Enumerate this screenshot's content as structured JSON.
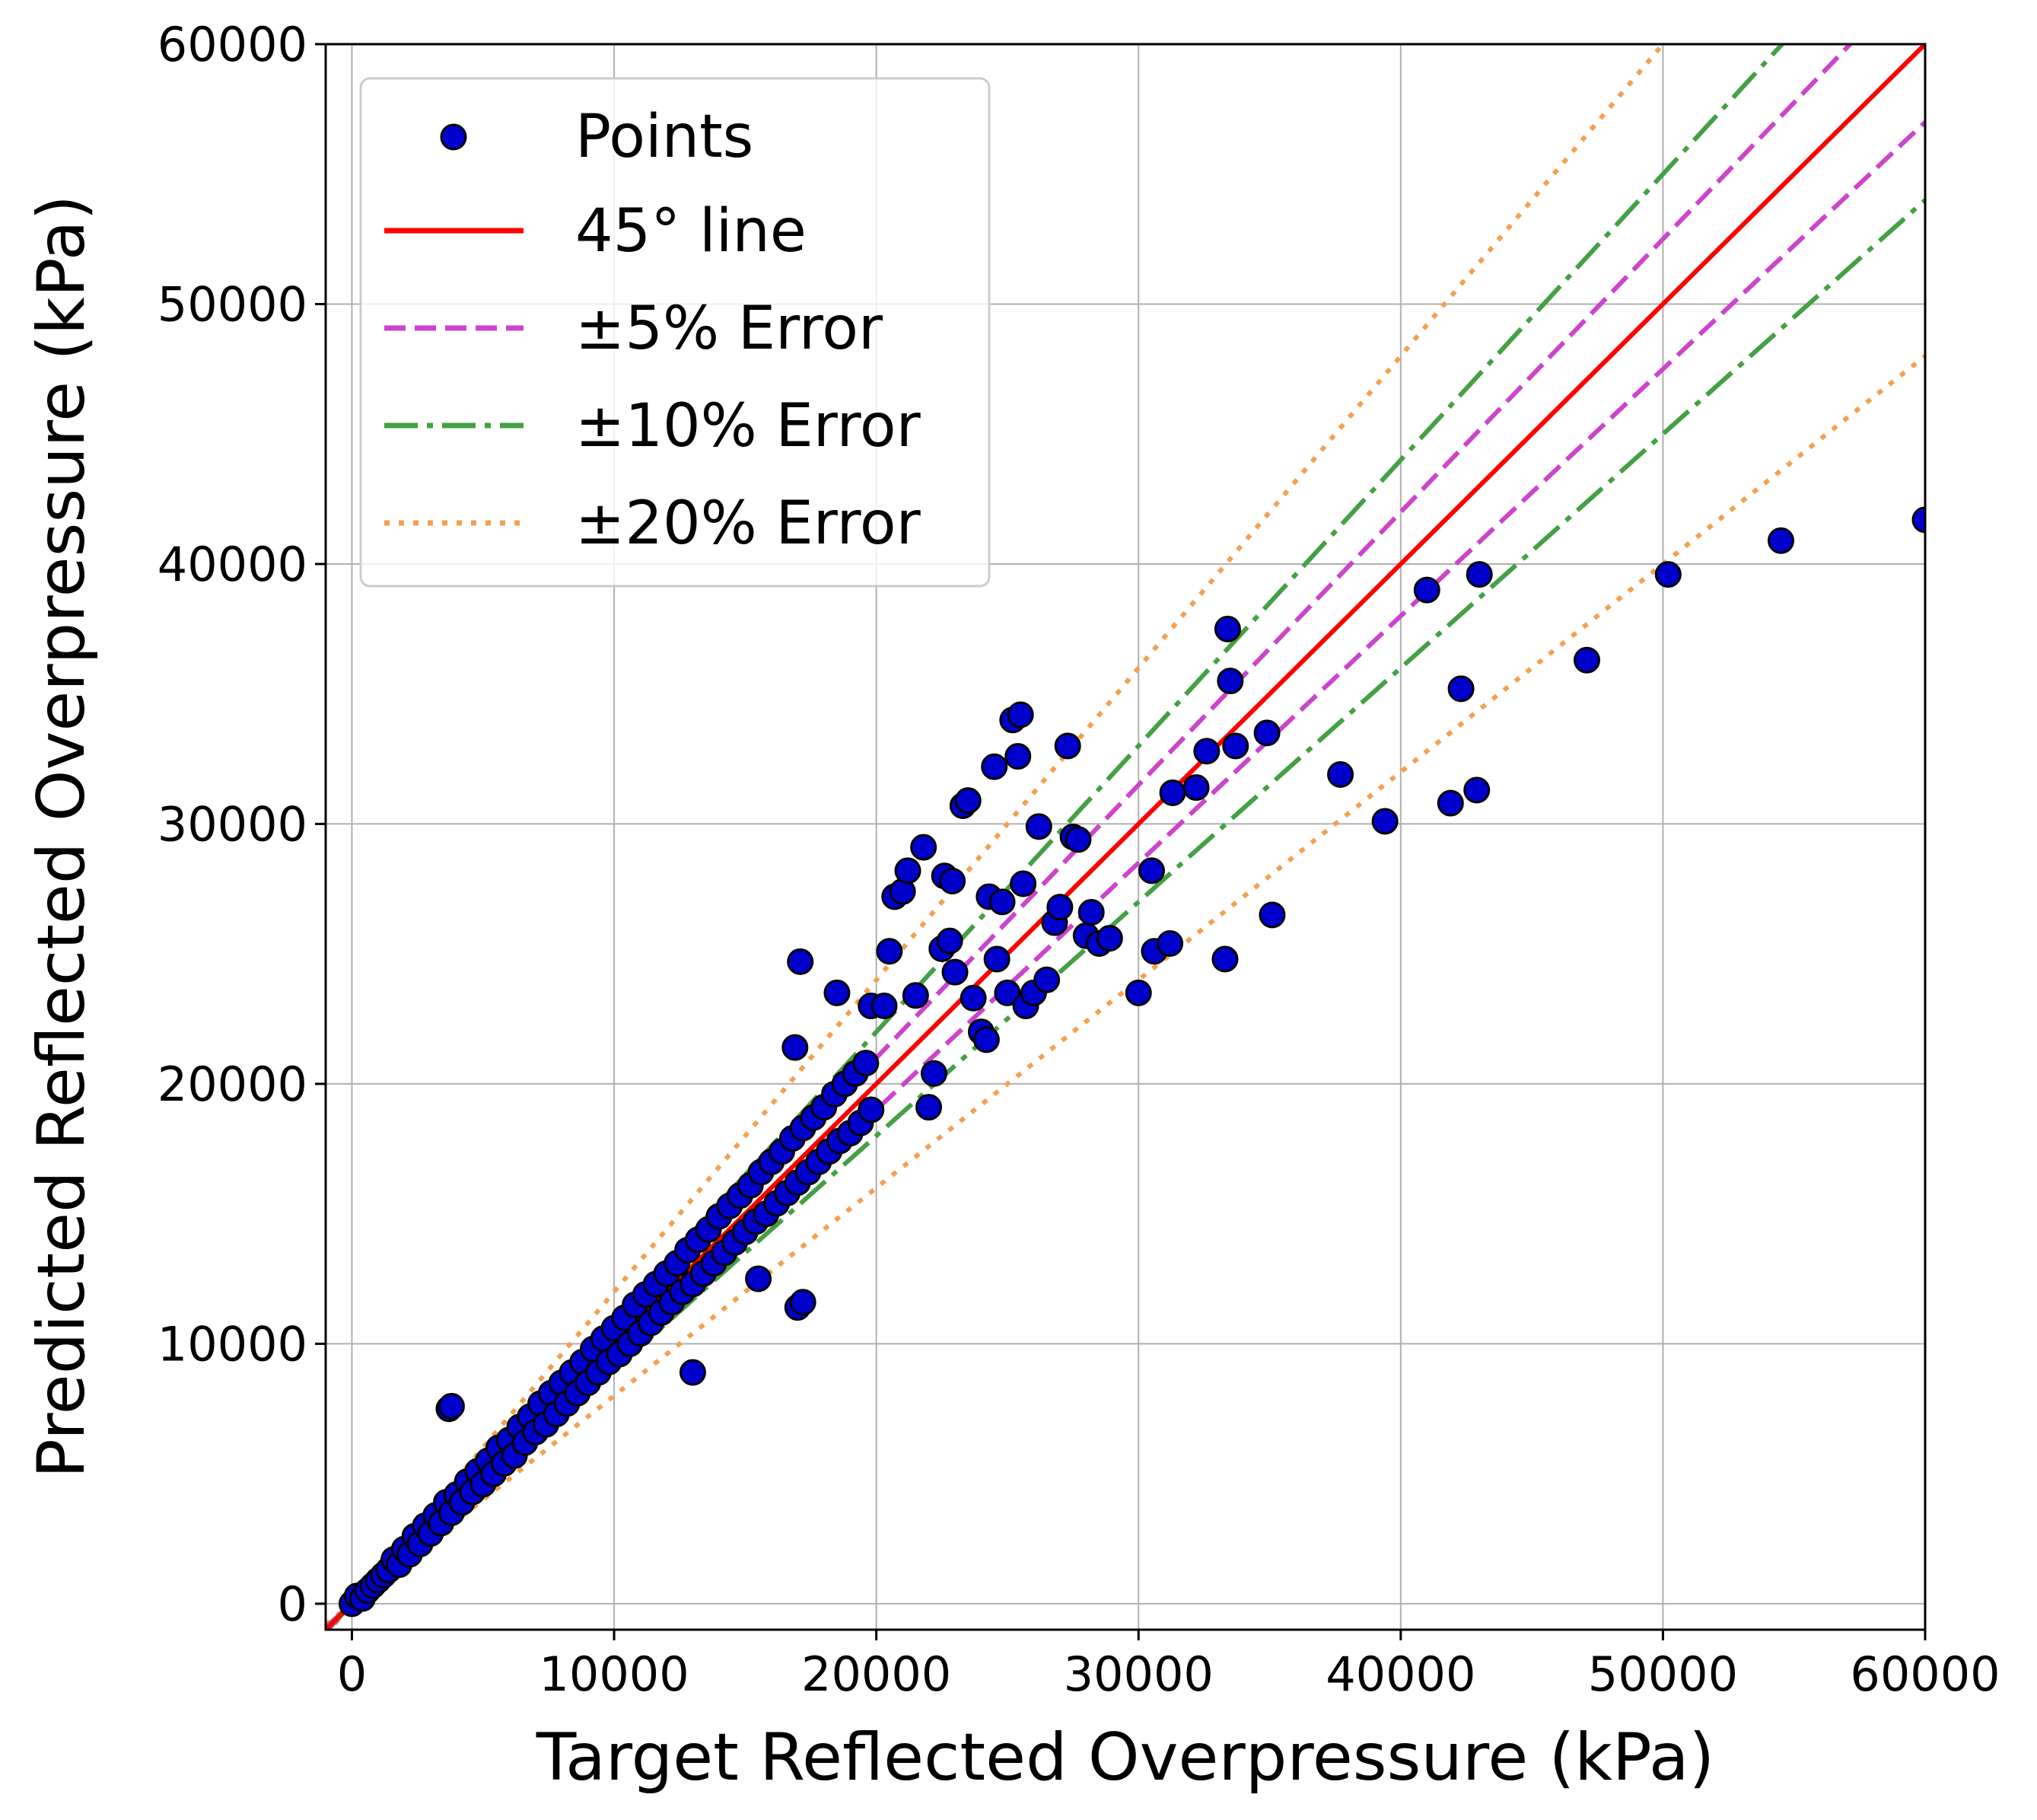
{
  "chart_data": {
    "type": "scatter",
    "title": "",
    "xlabel": "Target Reflected Overpressure (kPa)",
    "ylabel": "Predicted Reflected Overpressure (kPa)",
    "xlim": [
      -1000,
      60000
    ],
    "ylim": [
      -1000,
      60000
    ],
    "xticks": [
      "0",
      "10000",
      "20000",
      "30000",
      "40000",
      "50000",
      "60000"
    ],
    "yticks": [
      "0",
      "10000",
      "20000",
      "30000",
      "40000",
      "50000",
      "60000"
    ],
    "grid": true,
    "legend_position": "top-left",
    "legend": {
      "points": "Points",
      "line45": "45° line",
      "err5": "±5% Error",
      "err10": "±10% Error",
      "err20": "±20% Error"
    },
    "colors": {
      "points_fill": "#0000cc",
      "points_edge": "#000000",
      "line45": "#ff0000",
      "err5": "#cc44cc",
      "err10": "#44a044",
      "err20": "#f5a050",
      "grid": "#b0b0b0"
    },
    "reference_lines": [
      {
        "name": "45° line",
        "slopes": [
          1.0
        ]
      },
      {
        "name": "±5% Error",
        "slopes": [
          1.05,
          0.95
        ]
      },
      {
        "name": "±10% Error",
        "slopes": [
          1.1,
          0.9
        ]
      },
      {
        "name": "±20% Error",
        "slopes": [
          1.2,
          0.8
        ]
      }
    ],
    "series": [
      {
        "name": "Points",
        "points": [
          [
            0,
            0
          ],
          [
            200,
            300
          ],
          [
            400,
            200
          ],
          [
            600,
            500
          ],
          [
            800,
            700
          ],
          [
            1000,
            900
          ],
          [
            1200,
            1100
          ],
          [
            1400,
            1300
          ],
          [
            1600,
            1700
          ],
          [
            1800,
            1500
          ],
          [
            2000,
            2100
          ],
          [
            2200,
            1900
          ],
          [
            2400,
            2600
          ],
          [
            2600,
            2300
          ],
          [
            2800,
            3000
          ],
          [
            3000,
            2700
          ],
          [
            3200,
            3400
          ],
          [
            3400,
            3100
          ],
          [
            3600,
            3900
          ],
          [
            3800,
            3500
          ],
          [
            4000,
            4200
          ],
          [
            4200,
            3900
          ],
          [
            4400,
            4700
          ],
          [
            4600,
            4300
          ],
          [
            4800,
            5100
          ],
          [
            5000,
            4600
          ],
          [
            5200,
            5500
          ],
          [
            5400,
            5000
          ],
          [
            5600,
            6000
          ],
          [
            5800,
            5400
          ],
          [
            6000,
            6300
          ],
          [
            6200,
            5700
          ],
          [
            6400,
            6800
          ],
          [
            6600,
            6200
          ],
          [
            6800,
            7200
          ],
          [
            7000,
            6600
          ],
          [
            7200,
            7700
          ],
          [
            7400,
            6900
          ],
          [
            7600,
            8100
          ],
          [
            7800,
            7300
          ],
          [
            8000,
            8500
          ],
          [
            8200,
            7700
          ],
          [
            8400,
            8900
          ],
          [
            8600,
            8100
          ],
          [
            8800,
            9300
          ],
          [
            9000,
            8500
          ],
          [
            9200,
            9800
          ],
          [
            9400,
            8900
          ],
          [
            9600,
            10200
          ],
          [
            9800,
            9300
          ],
          [
            10000,
            10600
          ],
          [
            10200,
            9600
          ],
          [
            10400,
            11000
          ],
          [
            10600,
            10000
          ],
          [
            10800,
            11500
          ],
          [
            11000,
            10400
          ],
          [
            11200,
            11900
          ],
          [
            11400,
            10800
          ],
          [
            11600,
            12300
          ],
          [
            11800,
            11200
          ],
          [
            12000,
            12700
          ],
          [
            12200,
            11600
          ],
          [
            12400,
            13100
          ],
          [
            12600,
            12000
          ],
          [
            12800,
            13600
          ],
          [
            13000,
            12300
          ],
          [
            13200,
            14000
          ],
          [
            13400,
            12700
          ],
          [
            13600,
            14400
          ],
          [
            13800,
            13100
          ],
          [
            14000,
            14900
          ],
          [
            14200,
            13500
          ],
          [
            14400,
            15300
          ],
          [
            14600,
            13900
          ],
          [
            14800,
            15700
          ],
          [
            15000,
            14300
          ],
          [
            15200,
            16100
          ],
          [
            15400,
            14700
          ],
          [
            15600,
            16600
          ],
          [
            15800,
            15000
          ],
          [
            16000,
            17000
          ],
          [
            16200,
            15400
          ],
          [
            16400,
            17400
          ],
          [
            16600,
            15800
          ],
          [
            16800,
            17900
          ],
          [
            17000,
            16200
          ],
          [
            17200,
            18300
          ],
          [
            17400,
            16600
          ],
          [
            17600,
            18700
          ],
          [
            17800,
            17000
          ],
          [
            18000,
            19100
          ],
          [
            18200,
            17400
          ],
          [
            18400,
            19600
          ],
          [
            18600,
            17800
          ],
          [
            18800,
            20000
          ],
          [
            19000,
            18100
          ],
          [
            19200,
            20400
          ],
          [
            19400,
            18500
          ],
          [
            19600,
            20800
          ],
          [
            19800,
            19000
          ],
          [
            3700,
            7500
          ],
          [
            3800,
            7600
          ],
          [
            13000,
            8900
          ],
          [
            15500,
            12500
          ],
          [
            17000,
            11400
          ],
          [
            17200,
            11600
          ],
          [
            16900,
            21400
          ],
          [
            17100,
            24700
          ],
          [
            18500,
            23500
          ],
          [
            19800,
            23000
          ],
          [
            20300,
            23000
          ],
          [
            20500,
            25100
          ],
          [
            20700,
            27200
          ],
          [
            21000,
            27400
          ],
          [
            21200,
            28200
          ],
          [
            21500,
            23400
          ],
          [
            21800,
            29100
          ],
          [
            22000,
            19100
          ],
          [
            22200,
            20400
          ],
          [
            22500,
            25200
          ],
          [
            22600,
            28000
          ],
          [
            22800,
            25500
          ],
          [
            22900,
            27800
          ],
          [
            23000,
            24300
          ],
          [
            23300,
            30700
          ],
          [
            23500,
            30900
          ],
          [
            23700,
            23300
          ],
          [
            24000,
            22000
          ],
          [
            24200,
            21700
          ],
          [
            24300,
            27200
          ],
          [
            24500,
            32200
          ],
          [
            24600,
            24800
          ],
          [
            24800,
            27000
          ],
          [
            25000,
            23500
          ],
          [
            25200,
            34000
          ],
          [
            25400,
            32600
          ],
          [
            25500,
            34200
          ],
          [
            25600,
            27700
          ],
          [
            25700,
            23000
          ],
          [
            26000,
            23500
          ],
          [
            26200,
            29900
          ],
          [
            26500,
            24000
          ],
          [
            26800,
            26200
          ],
          [
            27000,
            26800
          ],
          [
            27300,
            33000
          ],
          [
            27500,
            29500
          ],
          [
            27700,
            29400
          ],
          [
            28000,
            25700
          ],
          [
            28200,
            26600
          ],
          [
            28500,
            25400
          ],
          [
            28900,
            25600
          ],
          [
            30000,
            23500
          ],
          [
            30500,
            28200
          ],
          [
            30600,
            25100
          ],
          [
            31200,
            25400
          ],
          [
            31300,
            31200
          ],
          [
            32200,
            31400
          ],
          [
            32600,
            32800
          ],
          [
            33300,
            24800
          ],
          [
            33400,
            37500
          ],
          [
            33500,
            35500
          ],
          [
            33700,
            33000
          ],
          [
            34900,
            33500
          ],
          [
            35100,
            26500
          ],
          [
            37700,
            31900
          ],
          [
            39400,
            30100
          ],
          [
            41000,
            39000
          ],
          [
            41900,
            30800
          ],
          [
            42300,
            35200
          ],
          [
            42900,
            31300
          ],
          [
            43000,
            39600
          ],
          [
            47100,
            36300
          ],
          [
            50200,
            39600
          ],
          [
            54500,
            40900
          ],
          [
            60000,
            41700
          ]
        ]
      }
    ]
  }
}
